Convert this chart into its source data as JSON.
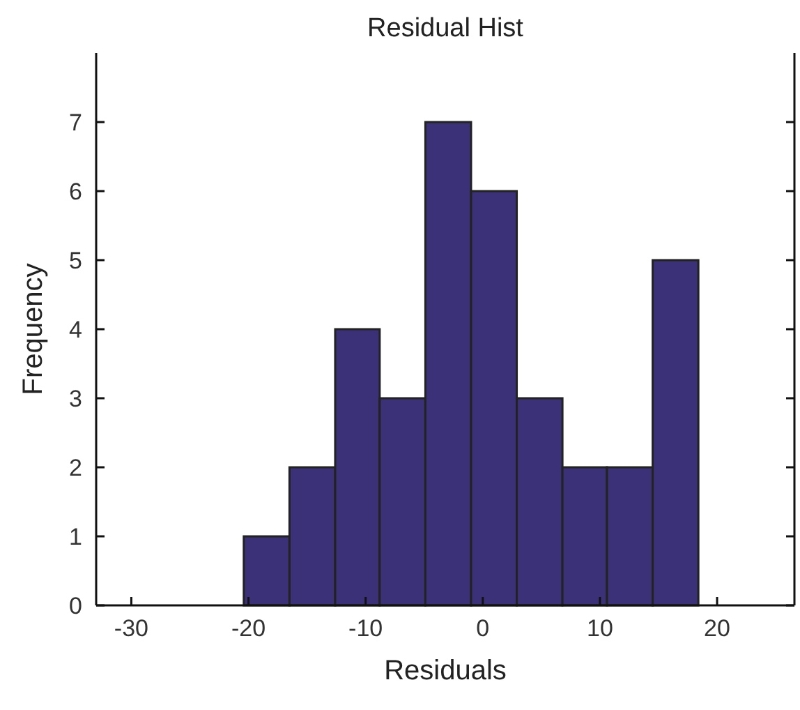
{
  "chart_data": {
    "type": "histogram",
    "title": "Residual Hist",
    "xlabel": "Residuals",
    "ylabel": "Frequency",
    "bins": [
      -20.4,
      -16.5,
      -12.6,
      -8.8,
      -4.9,
      -1.0,
      2.9,
      6.8,
      10.6,
      14.5,
      18.4
    ],
    "values": [
      1,
      2,
      4,
      3,
      7,
      6,
      3,
      2,
      2,
      5
    ],
    "color": "#3b3178",
    "xlim": [
      -33,
      26.6
    ],
    "xticks": [
      -30,
      -20,
      -10,
      0,
      10,
      20
    ],
    "ylim": [
      0,
      8
    ],
    "yticks": [
      0,
      1,
      2,
      3,
      4,
      5,
      6,
      7
    ],
    "grid": false
  }
}
